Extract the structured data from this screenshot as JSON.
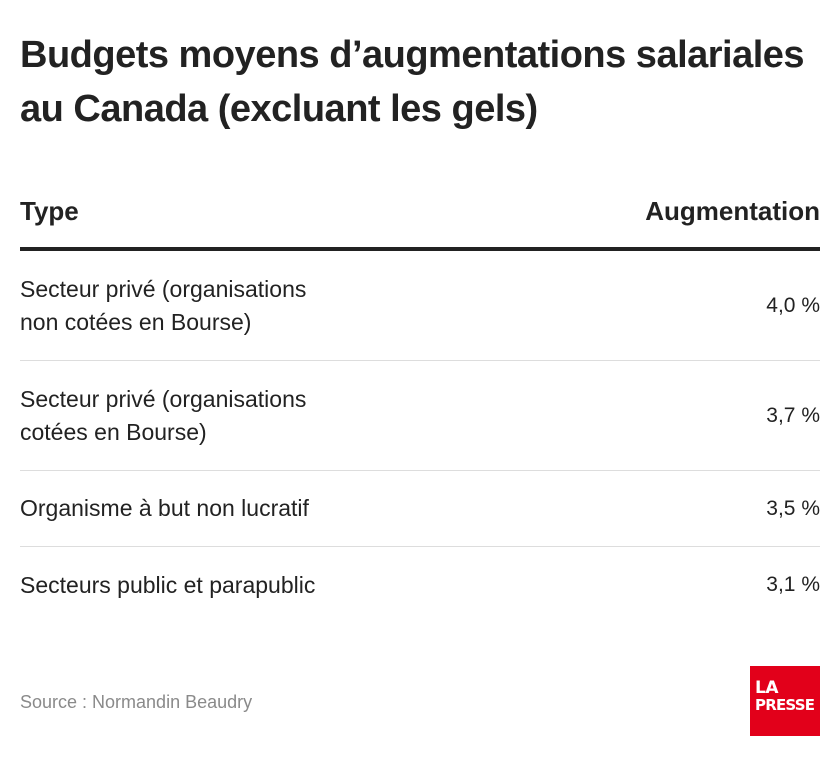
{
  "chart_data": {
    "type": "table",
    "title": "Budgets moyens d’augmentations salariales au Canada (excluant les gels)",
    "columns": [
      "Type",
      "Augmentation"
    ],
    "rows": [
      {
        "type": "Secteur privé (organisations non cotées en Bourse)",
        "value": "4,0 %"
      },
      {
        "type": "Secteur privé (organisations cotées en Bourse)",
        "value": "3,7 %"
      },
      {
        "type": "Organisme à but non lucratif",
        "value": "3,5 %"
      },
      {
        "type": "Secteurs public et parapublic",
        "value": "3,1 %"
      }
    ],
    "values": [
      4.0,
      3.7,
      3.5,
      3.1
    ]
  },
  "source": "Source : Normandin Beaudry",
  "logo": {
    "line1": "LA",
    "line2": "PRESSE",
    "color": "#e2001a"
  }
}
